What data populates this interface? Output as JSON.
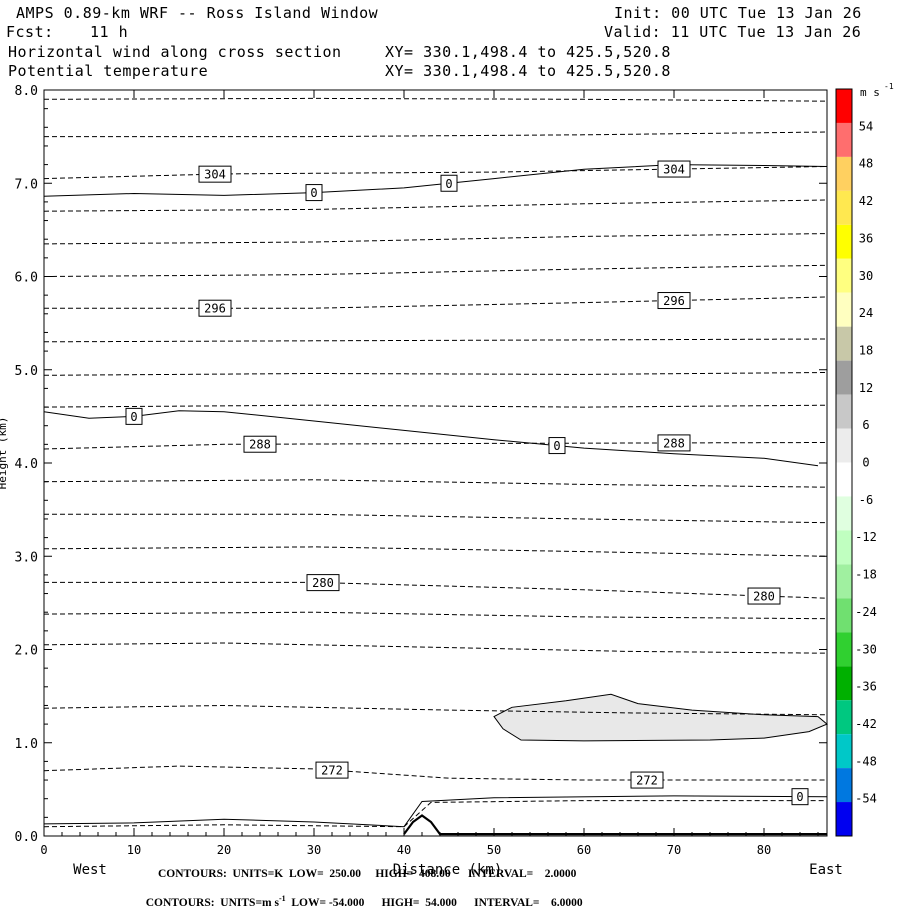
{
  "header": {
    "title": "AMPS 0.89-km WRF -- Ross Island Window",
    "init": "Init: 00 UTC Tue 13 Jan 26",
    "fcst_label": "Fcst:",
    "fcst_value": "11 h",
    "valid": "Valid: 11 UTC Tue 13 Jan 26",
    "field1": "Horizontal wind along cross section",
    "field2": "Potential temperature",
    "xy1": "XY= 330.1,498.4 to 425.5,520.8",
    "xy2": "XY= 330.1,498.4 to 425.5,520.8"
  },
  "footer": {
    "line1": "CONTOURS:  UNITS=K  LOW=  250.00     HIGH=  408.00      INTERVAL=    2.0000",
    "line2_a": "CONTOURS:  UNITS=m s",
    "line2_sup": "-1",
    "line2_b": "  LOW= -54.000      HIGH=  54.000      INTERVAL=    6.0000"
  },
  "chart_data": {
    "type": "contour",
    "xlabel": "Distance (km)",
    "ylabel": "Height (km)",
    "x_ticks": [
      0,
      10,
      20,
      30,
      40,
      50,
      60,
      70,
      80
    ],
    "y_ticks": [
      "0.0",
      "1.0",
      "2.0",
      "3.0",
      "4.0",
      "5.0",
      "6.0",
      "7.0",
      "8.0"
    ],
    "xlim": [
      0,
      87
    ],
    "ylim": [
      0,
      8
    ],
    "west_label": "West",
    "east_label": "East",
    "theta_contours_K": [
      {
        "value": 270,
        "label": "",
        "points": [
          [
            0,
            0.1
          ],
          [
            20,
            0.12
          ],
          [
            40,
            0.1
          ],
          [
            43,
            0.36
          ],
          [
            60,
            0.38
          ],
          [
            87,
            0.38
          ]
        ]
      },
      {
        "value": 272,
        "label": "272",
        "points": [
          [
            0,
            0.7
          ],
          [
            15,
            0.75
          ],
          [
            30,
            0.72
          ],
          [
            45,
            0.62
          ],
          [
            60,
            0.6
          ],
          [
            87,
            0.6
          ]
        ]
      },
      {
        "value": 274,
        "label": "",
        "points": [
          [
            0,
            1.37
          ],
          [
            20,
            1.4
          ],
          [
            45,
            1.35
          ],
          [
            65,
            1.32
          ],
          [
            87,
            1.3
          ]
        ]
      },
      {
        "value": 276,
        "label": "",
        "points": [
          [
            0,
            2.05
          ],
          [
            20,
            2.07
          ],
          [
            45,
            2.02
          ],
          [
            65,
            1.98
          ],
          [
            87,
            1.96
          ]
        ]
      },
      {
        "value": 278,
        "label": "",
        "points": [
          [
            0,
            2.38
          ],
          [
            30,
            2.4
          ],
          [
            60,
            2.35
          ],
          [
            87,
            2.33
          ]
        ]
      },
      {
        "value": 280,
        "label": "280",
        "points": [
          [
            0,
            2.72
          ],
          [
            30,
            2.72
          ],
          [
            60,
            2.64
          ],
          [
            87,
            2.55
          ]
        ]
      },
      {
        "value": 282,
        "label": "",
        "points": [
          [
            0,
            3.08
          ],
          [
            30,
            3.1
          ],
          [
            60,
            3.05
          ],
          [
            87,
            3.0
          ]
        ]
      },
      {
        "value": 284,
        "label": "",
        "points": [
          [
            0,
            3.45
          ],
          [
            30,
            3.45
          ],
          [
            60,
            3.4
          ],
          [
            87,
            3.36
          ]
        ]
      },
      {
        "value": 286,
        "label": "",
        "points": [
          [
            0,
            3.8
          ],
          [
            30,
            3.82
          ],
          [
            60,
            3.77
          ],
          [
            87,
            3.74
          ]
        ]
      },
      {
        "value": 288,
        "label": "288",
        "points": [
          [
            0,
            4.15
          ],
          [
            20,
            4.2
          ],
          [
            50,
            4.21
          ],
          [
            87,
            4.22
          ]
        ]
      },
      {
        "value": 290,
        "label": "",
        "points": [
          [
            0,
            4.6
          ],
          [
            30,
            4.62
          ],
          [
            60,
            4.6
          ],
          [
            87,
            4.62
          ]
        ]
      },
      {
        "value": 292,
        "label": "",
        "points": [
          [
            0,
            4.94
          ],
          [
            30,
            4.96
          ],
          [
            60,
            4.95
          ],
          [
            87,
            4.97
          ]
        ]
      },
      {
        "value": 294,
        "label": "",
        "points": [
          [
            0,
            5.3
          ],
          [
            30,
            5.31
          ],
          [
            60,
            5.32
          ],
          [
            87,
            5.33
          ]
        ]
      },
      {
        "value": 296,
        "label": "296",
        "points": [
          [
            0,
            5.66
          ],
          [
            30,
            5.66
          ],
          [
            60,
            5.72
          ],
          [
            87,
            5.78
          ]
        ]
      },
      {
        "value": 298,
        "label": "",
        "points": [
          [
            0,
            6.0
          ],
          [
            30,
            6.02
          ],
          [
            60,
            6.08
          ],
          [
            87,
            6.12
          ]
        ]
      },
      {
        "value": 300,
        "label": "",
        "points": [
          [
            0,
            6.35
          ],
          [
            30,
            6.37
          ],
          [
            60,
            6.43
          ],
          [
            87,
            6.46
          ]
        ]
      },
      {
        "value": 302,
        "label": "",
        "points": [
          [
            0,
            6.7
          ],
          [
            30,
            6.72
          ],
          [
            60,
            6.78
          ],
          [
            87,
            6.82
          ]
        ]
      },
      {
        "value": 304,
        "label": "304",
        "points": [
          [
            0,
            7.05
          ],
          [
            20,
            7.1
          ],
          [
            50,
            7.12
          ],
          [
            87,
            7.18
          ]
        ]
      },
      {
        "value": 306,
        "label": "",
        "points": [
          [
            0,
            7.5
          ],
          [
            30,
            7.5
          ],
          [
            60,
            7.52
          ],
          [
            87,
            7.55
          ]
        ]
      },
      {
        "value": 308,
        "label": "",
        "points": [
          [
            0,
            7.9
          ],
          [
            30,
            7.91
          ],
          [
            60,
            7.9
          ],
          [
            87,
            7.88
          ]
        ]
      }
    ],
    "wind_zero_contours": [
      {
        "label": "0",
        "points": [
          [
            0,
            6.86
          ],
          [
            10,
            6.89
          ],
          [
            20,
            6.87
          ],
          [
            30,
            6.9
          ],
          [
            40,
            6.95
          ],
          [
            50,
            7.05
          ],
          [
            60,
            7.15
          ],
          [
            70,
            7.2
          ],
          [
            80,
            7.19
          ],
          [
            87,
            7.18
          ]
        ]
      },
      {
        "label": "0",
        "points": [
          [
            0,
            4.55
          ],
          [
            5,
            4.48
          ],
          [
            10,
            4.5
          ],
          [
            15,
            4.56
          ],
          [
            20,
            4.55
          ],
          [
            30,
            4.45
          ],
          [
            40,
            4.35
          ],
          [
            50,
            4.25
          ],
          [
            60,
            4.16
          ],
          [
            70,
            4.1
          ],
          [
            80,
            4.05
          ],
          [
            86,
            3.97
          ]
        ]
      },
      {
        "label": "0",
        "points": [
          [
            0,
            0.13
          ],
          [
            10,
            0.14
          ],
          [
            20,
            0.18
          ],
          [
            30,
            0.15
          ],
          [
            40,
            0.1
          ],
          [
            42,
            0.37
          ],
          [
            50,
            0.41
          ],
          [
            70,
            0.43
          ],
          [
            87,
            0.42
          ]
        ]
      }
    ],
    "wind_shaded_region": {
      "range": "6 to 12 m s-1",
      "color": "#e8e8e8",
      "points": [
        [
          50,
          1.28
        ],
        [
          52,
          1.38
        ],
        [
          58,
          1.45
        ],
        [
          63,
          1.52
        ],
        [
          66,
          1.42
        ],
        [
          72,
          1.35
        ],
        [
          80,
          1.3
        ],
        [
          86,
          1.28
        ],
        [
          87,
          1.2
        ],
        [
          85,
          1.12
        ],
        [
          80,
          1.05
        ],
        [
          74,
          1.03
        ],
        [
          60,
          1.02
        ],
        [
          53,
          1.03
        ],
        [
          51,
          1.15
        ]
      ]
    },
    "terrain": {
      "points": [
        [
          40,
          0.02
        ],
        [
          41,
          0.15
        ],
        [
          42,
          0.22
        ],
        [
          43,
          0.15
        ],
        [
          44,
          0.02
        ],
        [
          87,
          0.02
        ]
      ]
    },
    "colorbar": {
      "unit": "m s",
      "unit_sup": "-1",
      "labels": [
        "54",
        "48",
        "42",
        "36",
        "30",
        "24",
        "18",
        "12",
        "6",
        "0",
        "-6",
        "-12",
        "-18",
        "-24",
        "-30",
        "-36",
        "-42",
        "-48",
        "-54"
      ],
      "colors": [
        "#ff0000",
        "#ff6e6e",
        "#ffd060",
        "#ffe850",
        "#ffff00",
        "#ffff80",
        "#ffffc0",
        "#c8c8a8",
        "#9e9e9e",
        "#c8c8c8",
        "#ececec",
        "#ffffff",
        "#e0ffe0",
        "#c0ffc0",
        "#a0f0a0",
        "#70e070",
        "#30d030",
        "#00b000",
        "#00c880",
        "#00c8c8",
        "#0078e0",
        "#0000f0"
      ]
    }
  }
}
